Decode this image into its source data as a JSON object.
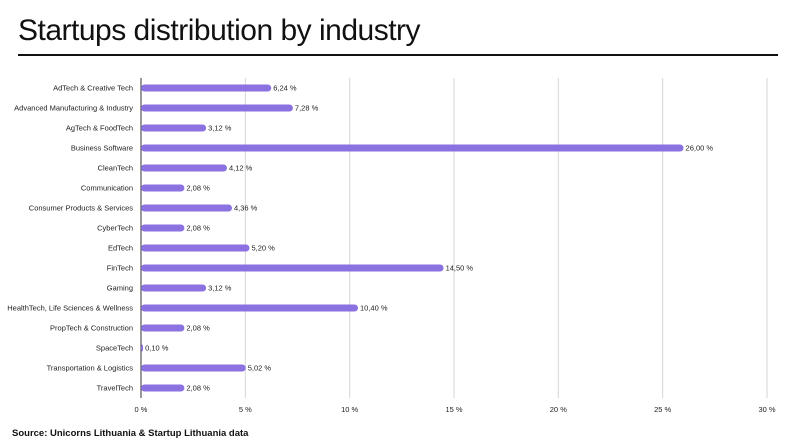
{
  "header": {
    "title": "Startups distribution by industry"
  },
  "footer": {
    "source": "Source: Unicorns Lithuania & Startup Lithuania data"
  },
  "chart_data": {
    "type": "bar",
    "orientation": "horizontal",
    "bar_color": "#8b72e0",
    "categories": [
      "AdTech & Creative Tech",
      "Advanced Manufacturing & Industry",
      "AgTech & FoodTech",
      "Business Software",
      "CleanTech",
      "Communication",
      "Consumer Products & Services",
      "CyberTech",
      "EdTech",
      "FinTech",
      "Gaming",
      "HealthTech, Life Sciences & Wellness",
      "PropTech & Construction",
      "SpaceTech",
      "Transportation & Logistics",
      "TravelTech"
    ],
    "values": [
      6.24,
      7.28,
      3.12,
      26.0,
      4.12,
      2.08,
      4.36,
      2.08,
      5.2,
      14.5,
      3.12,
      10.4,
      2.08,
      0.1,
      5.02,
      2.08
    ],
    "value_labels": [
      "6,24 %",
      "7,28 %",
      "3,12 %",
      "26,00 %",
      "4,12 %",
      "2,08 %",
      "4,36 %",
      "2,08 %",
      "5,20 %",
      "14,50 %",
      "3,12 %",
      "10,40 %",
      "2,08 %",
      "0,10 %",
      "5,02 %",
      "2,08 %"
    ],
    "xlim": [
      0,
      30
    ],
    "x_ticks": [
      0,
      5,
      10,
      15,
      20,
      25,
      30
    ],
    "x_tick_labels": [
      "0 %",
      "5 %",
      "10 %",
      "15 %",
      "20 %",
      "25 %",
      "30 %"
    ],
    "grid": "vertical",
    "xlabel": "",
    "ylabel": ""
  }
}
